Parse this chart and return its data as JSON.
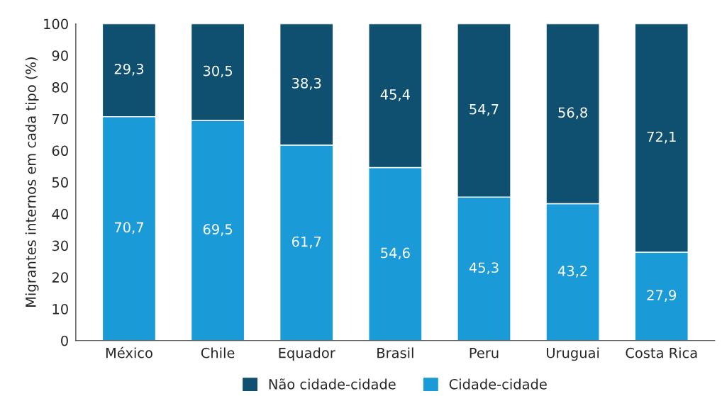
{
  "chart_data": {
    "type": "bar",
    "stacked": true,
    "ylabel": "Migrantes internos em cada tipo (%)",
    "categories": [
      "México",
      "Chile",
      "Equador",
      "Brasil",
      "Peru",
      "Uruguai",
      "Costa Rica"
    ],
    "series": [
      {
        "name": "Cidade-cidade",
        "color": "#1a9ad6",
        "values": [
          70.7,
          69.5,
          61.7,
          54.6,
          45.3,
          43.2,
          27.9
        ],
        "value_labels": [
          "70,7",
          "69,5",
          "61,7",
          "54,6",
          "45,3",
          "43,2",
          "27,9"
        ]
      },
      {
        "name": "Não cidade-cidade",
        "color": "#0f5070",
        "values": [
          29.3,
          30.5,
          38.3,
          45.4,
          54.7,
          56.8,
          72.1
        ],
        "value_labels": [
          "29,3",
          "30,5",
          "38,3",
          "45,4",
          "54,7",
          "56,8",
          "72,1"
        ]
      }
    ],
    "ylim": [
      0,
      100
    ],
    "yticks": [
      0,
      10,
      20,
      30,
      40,
      50,
      60,
      70,
      80,
      90,
      100
    ],
    "grid": false,
    "legend": "bottom"
  }
}
